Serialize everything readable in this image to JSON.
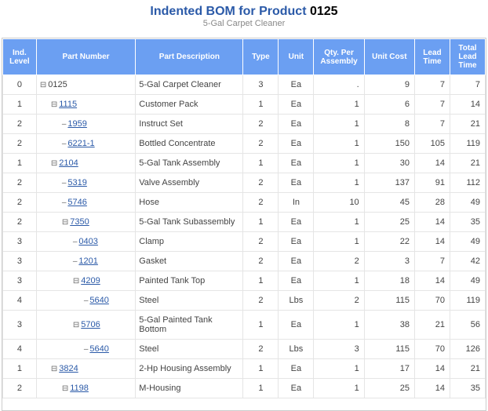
{
  "header": {
    "title_prefix": "Indented BOM for Product",
    "product": "0125",
    "subtitle": "5-Gal Carpet Cleaner"
  },
  "columns": [
    {
      "key": "level",
      "label": "Ind. Level",
      "class": "c-level"
    },
    {
      "key": "part",
      "label": "Part Number",
      "class": "c-part"
    },
    {
      "key": "desc",
      "label": "Part Description",
      "class": "c-desc"
    },
    {
      "key": "type",
      "label": "Type",
      "class": "c-type"
    },
    {
      "key": "unit",
      "label": "Unit",
      "class": "c-unit"
    },
    {
      "key": "qty",
      "label": "Qty. Per Assembly",
      "class": "c-qty"
    },
    {
      "key": "cost",
      "label": "Unit Cost",
      "class": "c-cost"
    },
    {
      "key": "lead",
      "label": "Lead Time",
      "class": "c-lead"
    },
    {
      "key": "total",
      "label": "Total Lead Time",
      "class": "c-total"
    }
  ],
  "glyphs": {
    "plus": "⊞",
    "minus": "⊟",
    "dash": "–"
  },
  "rows": [
    {
      "level": "0",
      "indent": 0,
      "icon": "minus",
      "part": "0125",
      "link": false,
      "desc": "5-Gal Carpet Cleaner",
      "type": "3",
      "unit": "Ea",
      "qty": ".",
      "cost": "9",
      "lead": "7",
      "total": "7"
    },
    {
      "level": "1",
      "indent": 1,
      "icon": "minus",
      "part": "1115",
      "link": true,
      "desc": "Customer Pack",
      "type": "1",
      "unit": "Ea",
      "qty": "1",
      "cost": "6",
      "lead": "7",
      "total": "14"
    },
    {
      "level": "2",
      "indent": 2,
      "icon": "dash",
      "part": "1959",
      "link": true,
      "desc": "Instruct Set",
      "type": "2",
      "unit": "Ea",
      "qty": "1",
      "cost": "8",
      "lead": "7",
      "total": "21"
    },
    {
      "level": "2",
      "indent": 2,
      "icon": "dash",
      "part": "6221-1",
      "link": true,
      "desc": "Bottled Concentrate",
      "type": "2",
      "unit": "Ea",
      "qty": "1",
      "cost": "150",
      "lead": "105",
      "total": "119"
    },
    {
      "level": "1",
      "indent": 1,
      "icon": "minus",
      "part": "2104",
      "link": true,
      "desc": "5-Gal Tank Assembly",
      "type": "1",
      "unit": "Ea",
      "qty": "1",
      "cost": "30",
      "lead": "14",
      "total": "21"
    },
    {
      "level": "2",
      "indent": 2,
      "icon": "dash",
      "part": "5319",
      "link": true,
      "desc": "Valve Assembly",
      "type": "2",
      "unit": "Ea",
      "qty": "1",
      "cost": "137",
      "lead": "91",
      "total": "112"
    },
    {
      "level": "2",
      "indent": 2,
      "icon": "dash",
      "part": "5746",
      "link": true,
      "desc": "Hose",
      "type": "2",
      "unit": "In",
      "qty": "10",
      "cost": "45",
      "lead": "28",
      "total": "49"
    },
    {
      "level": "2",
      "indent": 2,
      "icon": "minus",
      "part": "7350",
      "link": true,
      "desc": "5-Gal Tank Subassembly",
      "type": "1",
      "unit": "Ea",
      "qty": "1",
      "cost": "25",
      "lead": "14",
      "total": "35"
    },
    {
      "level": "3",
      "indent": 3,
      "icon": "dash",
      "part": "0403",
      "link": true,
      "desc": "Clamp",
      "type": "2",
      "unit": "Ea",
      "qty": "1",
      "cost": "22",
      "lead": "14",
      "total": "49"
    },
    {
      "level": "3",
      "indent": 3,
      "icon": "dash",
      "part": "1201",
      "link": true,
      "desc": "Gasket",
      "type": "2",
      "unit": "Ea",
      "qty": "2",
      "cost": "3",
      "lead": "7",
      "total": "42"
    },
    {
      "level": "3",
      "indent": 3,
      "icon": "minus",
      "part": "4209",
      "link": true,
      "desc": "Painted Tank Top",
      "type": "1",
      "unit": "Ea",
      "qty": "1",
      "cost": "18",
      "lead": "14",
      "total": "49"
    },
    {
      "level": "4",
      "indent": 4,
      "icon": "dash",
      "part": "5640",
      "link": true,
      "desc": "Steel",
      "type": "2",
      "unit": "Lbs",
      "qty": "2",
      "cost": "115",
      "lead": "70",
      "total": "119"
    },
    {
      "level": "3",
      "indent": 3,
      "icon": "minus",
      "part": "5706",
      "link": true,
      "desc": "5-Gal Painted Tank Bottom",
      "type": "1",
      "unit": "Ea",
      "qty": "1",
      "cost": "38",
      "lead": "21",
      "total": "56"
    },
    {
      "level": "4",
      "indent": 4,
      "icon": "dash",
      "part": "5640",
      "link": true,
      "desc": "Steel",
      "type": "2",
      "unit": "Lbs",
      "qty": "3",
      "cost": "115",
      "lead": "70",
      "total": "126"
    },
    {
      "level": "1",
      "indent": 1,
      "icon": "minus",
      "part": "3824",
      "link": true,
      "desc": "2-Hp Housing Assembly",
      "type": "1",
      "unit": "Ea",
      "qty": "1",
      "cost": "17",
      "lead": "14",
      "total": "21"
    },
    {
      "level": "2",
      "indent": 2,
      "icon": "minus",
      "part": "1198",
      "link": true,
      "desc": "M-Housing",
      "type": "1",
      "unit": "Ea",
      "qty": "1",
      "cost": "25",
      "lead": "14",
      "total": "35"
    }
  ],
  "colors": {
    "header_bg": "#6b9ff2",
    "link": "#2b5aa8",
    "border": "#e5e5e5"
  }
}
